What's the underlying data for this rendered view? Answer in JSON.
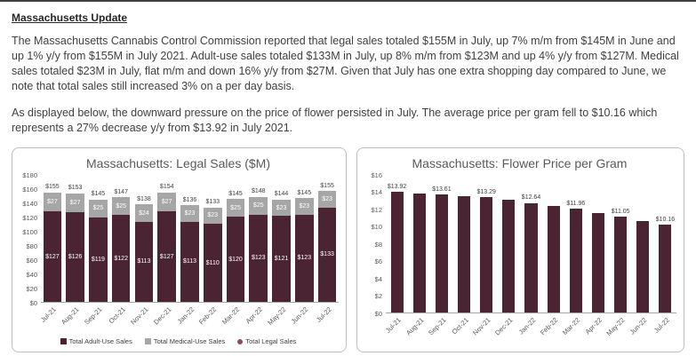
{
  "page": {
    "title": "Massachusetts Update",
    "paragraph1": "The Massachusetts Cannabis Control Commission reported that legal sales totaled $155M in July, up 7% m/m from $145M in June and up 1% y/y from $155M in July 2021. Adult-use sales totaled $133M in July, up 8% m/m from $123M and up 4% y/y from $127M. Medical sales totaled $23M in July, flat m/m and down 16% y/y from $27M. Given that July has one extra shopping day compared to June, we note that total sales still increased 3% on a per day basis.",
    "paragraph2": "As displayed below, the downward pressure on the price of flower persisted in July. The average price per gram fell to $10.16 which represents a 27% decrease y/y from $13.92 in July 2021."
  },
  "colors": {
    "adult": "#4a2433",
    "medical": "#a6a6a6",
    "legal": "#8c4a5f",
    "bar": "#4a2433"
  },
  "chart_data": [
    {
      "type": "bar",
      "stacked": true,
      "title": "Massachusetts: Legal Sales ($M)",
      "categories": [
        "Jul-21",
        "Aug-21",
        "Sep-21",
        "Oct-21",
        "Nov-21",
        "Dec-21",
        "Jan-22",
        "Feb-22",
        "Mar-22",
        "Apr-22",
        "May-22",
        "Jun-22",
        "Jul-22"
      ],
      "series": [
        {
          "name": "Total Adult-Use Sales",
          "values": [
            127,
            126,
            119,
            122,
            113,
            127,
            113,
            110,
            120,
            123,
            121,
            123,
            133
          ]
        },
        {
          "name": "Total Medical-Use Sales",
          "values": [
            27,
            27,
            25,
            25,
            24,
            27,
            23,
            23,
            25,
            25,
            23,
            23,
            23
          ]
        }
      ],
      "totals": [
        155,
        153,
        145,
        147,
        138,
        154,
        136,
        133,
        145,
        148,
        144,
        145,
        155
      ],
      "total_series_name": "Total Legal Sales",
      "ylim": [
        0,
        180
      ],
      "ytick_labels": [
        "$0",
        "$20",
        "$40",
        "$60",
        "$80",
        "$100",
        "$120",
        "$140",
        "$160",
        "$180"
      ],
      "grid": false,
      "legend_position": "bottom"
    },
    {
      "type": "bar",
      "title": "Massachusetts: Flower Price per Gram",
      "categories": [
        "Jul-21",
        "Aug-21",
        "Sep-21",
        "Oct-21",
        "Nov-21",
        "Dec-21",
        "Jan-22",
        "Feb-22",
        "Mar-22",
        "Apr-22",
        "May-22",
        "Jun-22",
        "Jul-22"
      ],
      "values": [
        13.92,
        13.75,
        13.61,
        13.45,
        13.29,
        13.0,
        12.64,
        12.3,
        11.96,
        11.5,
        11.05,
        10.6,
        10.16
      ],
      "labels": [
        "$13.92",
        "",
        "$13.61",
        "",
        "$13.29",
        "",
        "$12.64",
        "",
        "$11.96",
        "",
        "$11.05",
        "",
        "$10.16"
      ],
      "ylim": [
        0,
        16
      ],
      "ytick_labels": [
        "$0",
        "$2",
        "$4",
        "$6",
        "$8",
        "$10",
        "$12",
        "$14",
        "$16"
      ],
      "grid": false,
      "legend_position": "none"
    }
  ]
}
